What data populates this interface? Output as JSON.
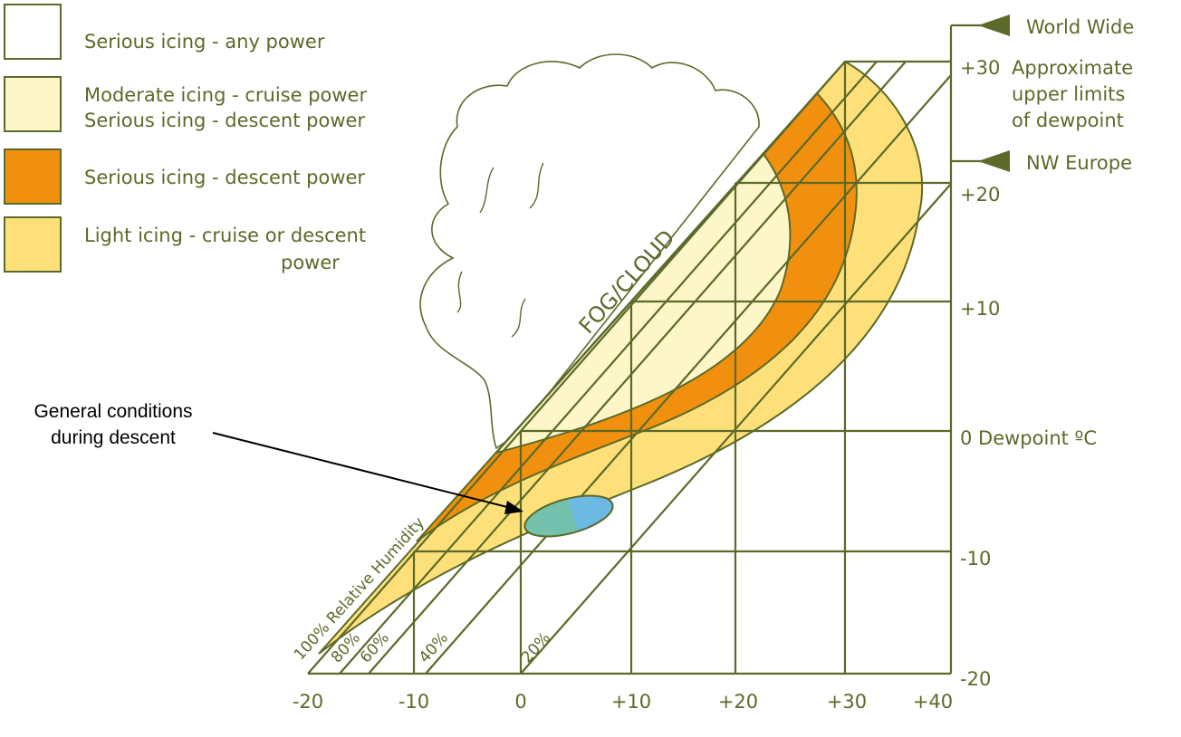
{
  "legend": [
    {
      "lines": [
        "Serious icing - any power"
      ]
    },
    {
      "lines": [
        "Moderate icing - cruise power",
        "Serious icing - descent power"
      ]
    },
    {
      "lines": [
        "Serious icing - descent power"
      ]
    },
    {
      "lines": [
        "Light icing - cruise or descent",
        "power"
      ]
    }
  ],
  "annotation": {
    "lines": [
      "General conditions",
      "during descent"
    ]
  },
  "fog_label": "FOG/CLOUD",
  "humidity_labels": [
    "100% Relative Humidity",
    "80%",
    "60%",
    "40%",
    "20%"
  ],
  "y_labels": [
    "+30",
    "+20",
    "+10",
    "0 Dewpoint ºC",
    "-10",
    "-20"
  ],
  "limits": [
    "World Wide",
    "Approximate",
    "upper limits",
    "of dewpoint",
    "NW Europe"
  ],
  "x_labels": [
    "-20",
    "-10",
    "0",
    "+10",
    "+20",
    "+30",
    "+40"
  ]
}
